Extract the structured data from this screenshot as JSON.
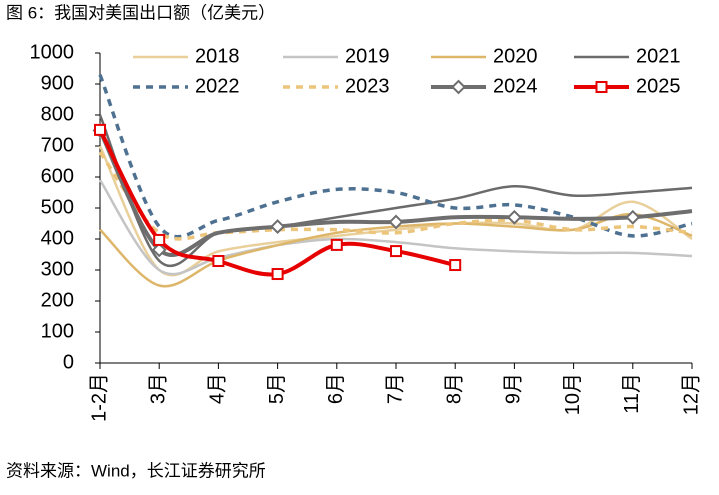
{
  "chart_data": {
    "type": "line",
    "title": "图 6：我国对美国出口额（亿美元）",
    "source": "资料来源：Wind，长江证券研究所",
    "categories": [
      "1-2月",
      "3月",
      "4月",
      "5月",
      "6月",
      "7月",
      "8月",
      "9月",
      "10月",
      "11月",
      "12月"
    ],
    "ylim": [
      0,
      1000
    ],
    "yticks": [
      0,
      100,
      200,
      300,
      400,
      500,
      600,
      700,
      800,
      900,
      1000
    ],
    "grid": false,
    "smooth": true,
    "series": [
      {
        "name": "2018",
        "color": "#e9cf9a",
        "width": 2.5,
        "dash": false,
        "values": [
          700,
          300,
          360,
          390,
          410,
          430,
          450,
          450,
          430,
          520,
          400
        ]
      },
      {
        "name": "2019",
        "color": "#c4c4c4",
        "width": 2.5,
        "dash": false,
        "values": [
          590,
          300,
          340,
          380,
          400,
          390,
          370,
          360,
          355,
          355,
          345
        ]
      },
      {
        "name": "2020",
        "color": "#ddb66a",
        "width": 2.5,
        "dash": false,
        "values": [
          430,
          250,
          330,
          380,
          420,
          440,
          450,
          440,
          430,
          480,
          410
        ]
      },
      {
        "name": "2021",
        "color": "#6b6b6b",
        "width": 2.5,
        "dash": false,
        "values": [
          800,
          330,
          420,
          440,
          470,
          500,
          530,
          570,
          540,
          550,
          565
        ]
      },
      {
        "name": "2022",
        "color": "#4e7191",
        "width": 3.5,
        "dash": true,
        "values": [
          930,
          440,
          460,
          520,
          560,
          550,
          500,
          510,
          470,
          410,
          450
        ]
      },
      {
        "name": "2023",
        "color": "#ecc47a",
        "width": 3.5,
        "dash": true,
        "values": [
          680,
          420,
          420,
          430,
          430,
          420,
          450,
          460,
          430,
          440,
          420
        ]
      },
      {
        "name": "2024",
        "color": "#6e6e6e",
        "width": 4,
        "dash": false,
        "marker": "diamond",
        "values": [
          750,
          365,
          420,
          440,
          455,
          455,
          470,
          470,
          465,
          470,
          490
        ]
      },
      {
        "name": "2025",
        "color": "#e60000",
        "width": 4,
        "dash": false,
        "marker": "square",
        "values": [
          752,
          397,
          329,
          287,
          381,
          361,
          316,
          null,
          null,
          null,
          null
        ]
      }
    ]
  }
}
